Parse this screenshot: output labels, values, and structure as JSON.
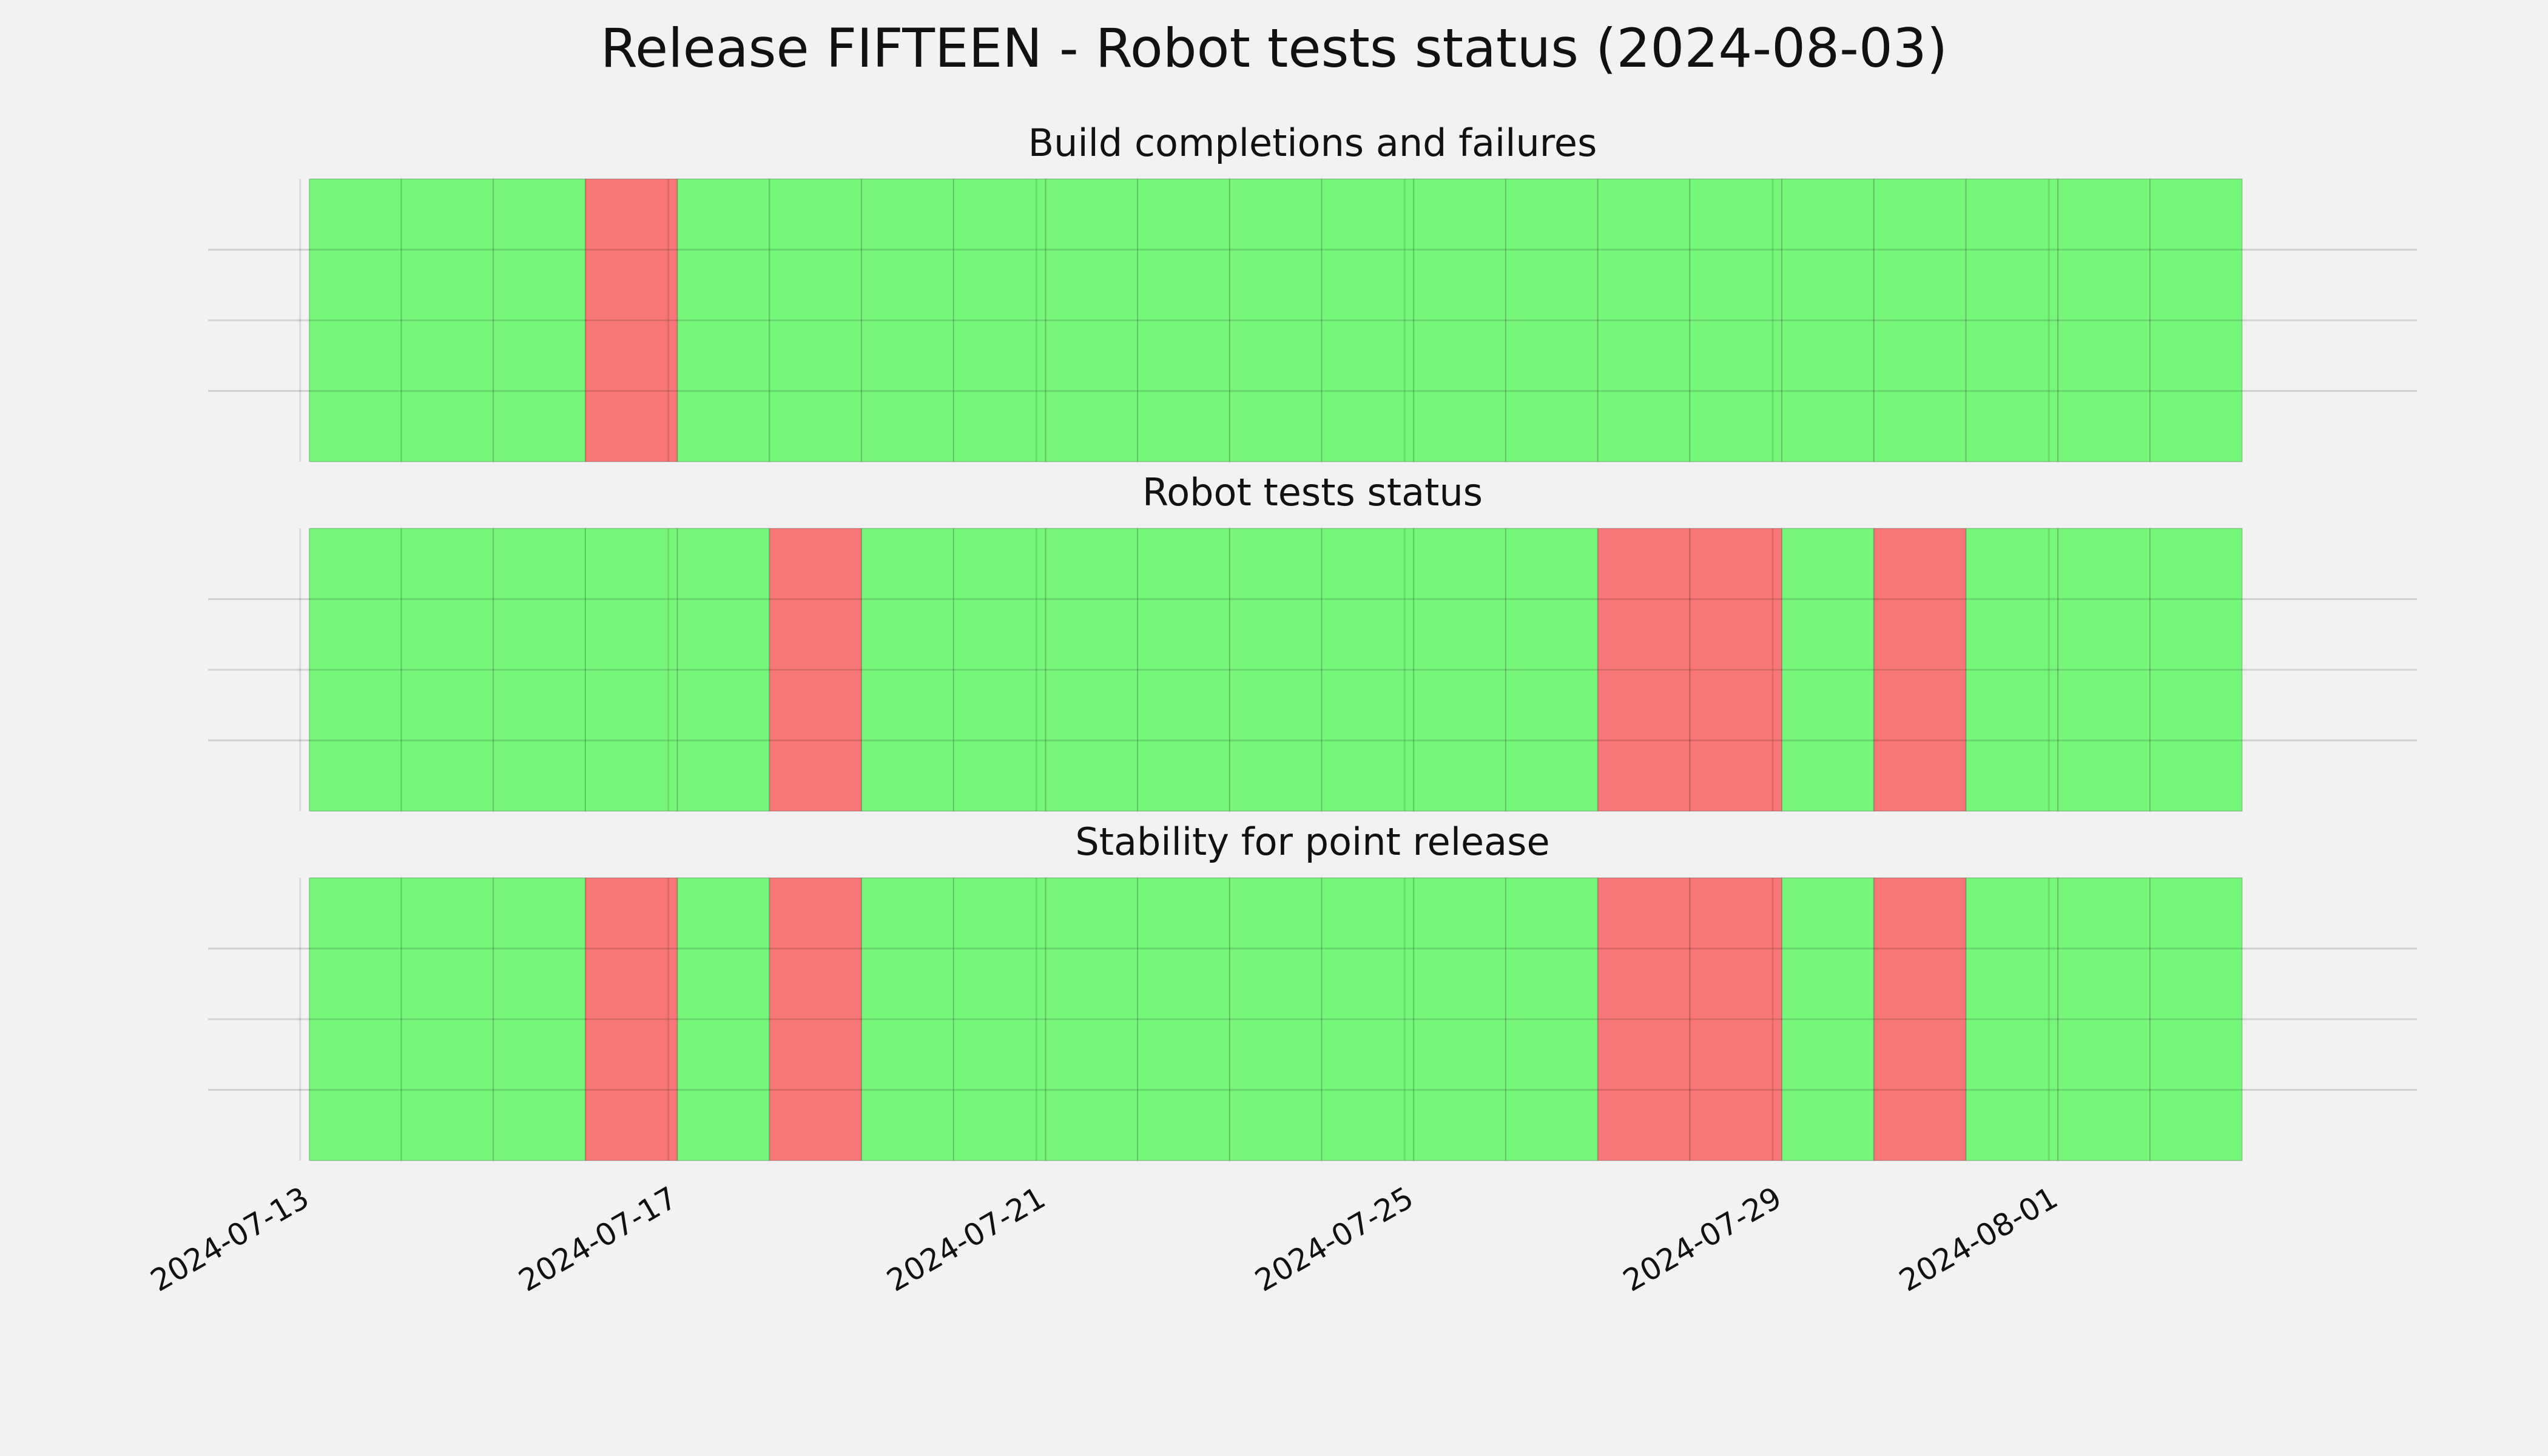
{
  "chart_data": [
    {
      "type": "timeline",
      "title": "Build completions and failures",
      "x": [
        "2024-07-13",
        "2024-07-14",
        "2024-07-15",
        "2024-07-16",
        "2024-07-17",
        "2024-07-18",
        "2024-07-19",
        "2024-07-20",
        "2024-07-21",
        "2024-07-22",
        "2024-07-23",
        "2024-07-24",
        "2024-07-25",
        "2024-07-26",
        "2024-07-27",
        "2024-07-28",
        "2024-07-29",
        "2024-07-30",
        "2024-07-31",
        "2024-08-01",
        "2024-08-02"
      ],
      "values": [
        1,
        1,
        1,
        0,
        1,
        1,
        1,
        1,
        1,
        1,
        1,
        1,
        1,
        1,
        1,
        1,
        1,
        1,
        1,
        1,
        1
      ],
      "colors": {
        "1": "#76f77a",
        "0": "#f77777"
      },
      "xlim": [
        "2024-07-12",
        "2024-08-05"
      ],
      "xticks": [
        "2024-07-13",
        "2024-07-17",
        "2024-07-21",
        "2024-07-25",
        "2024-07-29",
        "2024-08-01"
      ],
      "ylim": [
        0,
        1
      ],
      "yticks": [
        0.25,
        0.5,
        0.75
      ],
      "grid": true
    },
    {
      "type": "timeline",
      "title": "Robot tests status",
      "x": [
        "2024-07-13",
        "2024-07-14",
        "2024-07-15",
        "2024-07-16",
        "2024-07-17",
        "2024-07-18",
        "2024-07-19",
        "2024-07-20",
        "2024-07-21",
        "2024-07-22",
        "2024-07-23",
        "2024-07-24",
        "2024-07-25",
        "2024-07-26",
        "2024-07-27",
        "2024-07-28",
        "2024-07-29",
        "2024-07-30",
        "2024-07-31",
        "2024-08-01",
        "2024-08-02"
      ],
      "values": [
        1,
        1,
        1,
        1,
        1,
        0,
        1,
        1,
        1,
        1,
        1,
        1,
        1,
        1,
        0,
        0,
        1,
        0,
        1,
        1,
        1
      ],
      "colors": {
        "1": "#76f77a",
        "0": "#f77777"
      },
      "xlim": [
        "2024-07-12",
        "2024-08-05"
      ],
      "xticks": [
        "2024-07-13",
        "2024-07-17",
        "2024-07-21",
        "2024-07-25",
        "2024-07-29",
        "2024-08-01"
      ],
      "ylim": [
        0,
        1
      ],
      "yticks": [
        0.25,
        0.5,
        0.75
      ],
      "grid": true
    },
    {
      "type": "timeline",
      "title": "Stability for point release",
      "x": [
        "2024-07-13",
        "2024-07-14",
        "2024-07-15",
        "2024-07-16",
        "2024-07-17",
        "2024-07-18",
        "2024-07-19",
        "2024-07-20",
        "2024-07-21",
        "2024-07-22",
        "2024-07-23",
        "2024-07-24",
        "2024-07-25",
        "2024-07-26",
        "2024-07-27",
        "2024-07-28",
        "2024-07-29",
        "2024-07-30",
        "2024-07-31",
        "2024-08-01",
        "2024-08-02"
      ],
      "values": [
        1,
        1,
        1,
        0,
        1,
        0,
        1,
        1,
        1,
        1,
        1,
        1,
        1,
        1,
        0,
        0,
        1,
        0,
        1,
        1,
        1
      ],
      "colors": {
        "1": "#76f77a",
        "0": "#f77777"
      },
      "xlim": [
        "2024-07-12",
        "2024-08-05"
      ],
      "xticks": [
        "2024-07-13",
        "2024-07-17",
        "2024-07-21",
        "2024-07-25",
        "2024-07-29",
        "2024-08-01"
      ],
      "ylim": [
        0,
        1
      ],
      "yticks": [
        0.25,
        0.5,
        0.75
      ],
      "grid": true
    }
  ],
  "title": "Release FIFTEEN - Robot tests status (2024-08-03)"
}
